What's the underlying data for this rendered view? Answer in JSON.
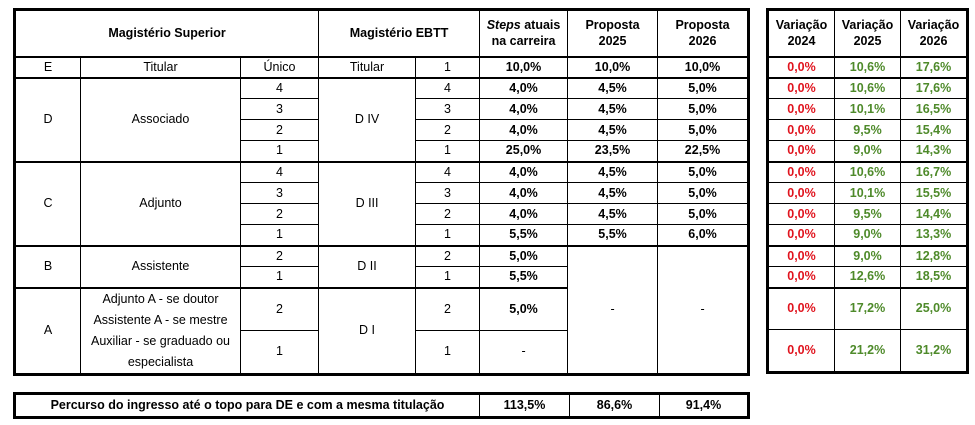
{
  "headers": {
    "superior": "Magistério Superior",
    "ebtt": "Magistério EBTT",
    "steps_italic": "Steps",
    "steps_rest": " atuais",
    "steps_line2": "na carreira",
    "prop2025_l1": "Proposta",
    "prop2025_l2": "2025",
    "prop2026_l1": "Proposta",
    "prop2026_l2": "2026",
    "var2024_l1": "Variação",
    "var2024_l2": "2024",
    "var2025_l1": "Variação",
    "var2025_l2": "2025",
    "var2026_l1": "Variação",
    "var2026_l2": "2026"
  },
  "groups": {
    "E": {
      "class": "E",
      "name": "Titular",
      "level": "Único",
      "ebtt": "Titular"
    },
    "D": {
      "class": "D",
      "name": "Associado",
      "ebtt": "D IV"
    },
    "C": {
      "class": "C",
      "name": "Adjunto",
      "ebtt": "D III"
    },
    "B": {
      "class": "B",
      "name": "Assistente",
      "ebtt": "D II"
    },
    "A": {
      "class": "A",
      "name_l1": "Adjunto A - se doutor",
      "name_l2": "Assistente A - se mestre",
      "name_l3": "Auxiliar - se graduado ou",
      "name_l4": "especialista",
      "ebtt": "D I"
    }
  },
  "rows": [
    {
      "level": "Único",
      "ebtt_level": "1",
      "steps": "10,0%",
      "p2025": "10,0%",
      "p2026": "10,0%",
      "v2024": "0,0%",
      "v2025": "10,6%",
      "v2026": "17,6%"
    },
    {
      "level": "4",
      "ebtt_level": "4",
      "steps": "4,0%",
      "p2025": "4,5%",
      "p2026": "5,0%",
      "v2024": "0,0%",
      "v2025": "10,6%",
      "v2026": "17,6%"
    },
    {
      "level": "3",
      "ebtt_level": "3",
      "steps": "4,0%",
      "p2025": "4,5%",
      "p2026": "5,0%",
      "v2024": "0,0%",
      "v2025": "10,1%",
      "v2026": "16,5%"
    },
    {
      "level": "2",
      "ebtt_level": "2",
      "steps": "4,0%",
      "p2025": "4,5%",
      "p2026": "5,0%",
      "v2024": "0,0%",
      "v2025": "9,5%",
      "v2026": "15,4%"
    },
    {
      "level": "1",
      "ebtt_level": "1",
      "steps": "25,0%",
      "p2025": "23,5%",
      "p2026": "22,5%",
      "v2024": "0,0%",
      "v2025": "9,0%",
      "v2026": "14,3%"
    },
    {
      "level": "4",
      "ebtt_level": "4",
      "steps": "4,0%",
      "p2025": "4,5%",
      "p2026": "5,0%",
      "v2024": "0,0%",
      "v2025": "10,6%",
      "v2026": "16,7%"
    },
    {
      "level": "3",
      "ebtt_level": "3",
      "steps": "4,0%",
      "p2025": "4,5%",
      "p2026": "5,0%",
      "v2024": "0,0%",
      "v2025": "10,1%",
      "v2026": "15,5%"
    },
    {
      "level": "2",
      "ebtt_level": "2",
      "steps": "4,0%",
      "p2025": "4,5%",
      "p2026": "5,0%",
      "v2024": "0,0%",
      "v2025": "9,5%",
      "v2026": "14,4%"
    },
    {
      "level": "1",
      "ebtt_level": "1",
      "steps": "5,5%",
      "p2025": "5,5%",
      "p2026": "6,0%",
      "v2024": "0,0%",
      "v2025": "9,0%",
      "v2026": "13,3%"
    },
    {
      "level": "2",
      "ebtt_level": "2",
      "steps": "5,0%",
      "v2024": "0,0%",
      "v2025": "9,0%",
      "v2026": "12,8%"
    },
    {
      "level": "1",
      "ebtt_level": "1",
      "steps": "5,5%",
      "v2024": "0,0%",
      "v2025": "12,6%",
      "v2026": "18,5%"
    },
    {
      "level": "2",
      "ebtt_level": "2",
      "steps": "5,0%",
      "v2024": "0,0%",
      "v2025": "17,2%",
      "v2026": "25,0%"
    },
    {
      "level": "1",
      "ebtt_level": "1",
      "steps": "-",
      "v2024": "0,0%",
      "v2025": "21,2%",
      "v2026": "31,2%"
    }
  ],
  "merged_dash": {
    "p2025": "-",
    "p2026": "-"
  },
  "footer": {
    "label": "Percurso do ingresso até o topo para DE e com a mesma titulação",
    "steps": "113,5%",
    "p2025": "86,6%",
    "p2026": "91,4%"
  }
}
